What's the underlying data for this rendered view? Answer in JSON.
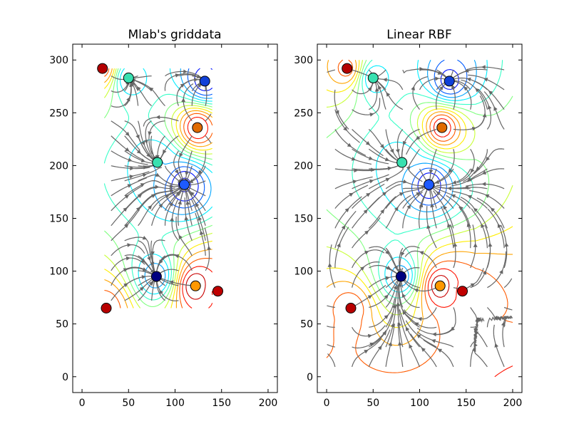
{
  "chart_data": [
    {
      "type": "scatter",
      "title": "Mlab's griddata",
      "xlabel": "",
      "ylabel": "",
      "xlim": [
        -10,
        210
      ],
      "ylim": [
        -15,
        315
      ],
      "xticks": [
        0,
        50,
        100,
        150,
        200
      ],
      "yticks": [
        0,
        50,
        100,
        150,
        200,
        250,
        300
      ],
      "grid": false,
      "contour_colormap": "jet",
      "streamline_color": "#666666",
      "interpolation_region": {
        "x": [
          24,
          140
        ],
        "y": [
          65,
          292
        ]
      },
      "points": [
        {
          "x": 22,
          "y": 292,
          "color": "#b40000"
        },
        {
          "x": 50,
          "y": 283,
          "color": "#38e0b0"
        },
        {
          "x": 132,
          "y": 280,
          "color": "#1040d8"
        },
        {
          "x": 124,
          "y": 236,
          "color": "#e06a00"
        },
        {
          "x": 81,
          "y": 203,
          "color": "#38e0b0"
        },
        {
          "x": 110,
          "y": 182,
          "color": "#1e5aff"
        },
        {
          "x": 80,
          "y": 95,
          "color": "#000080"
        },
        {
          "x": 122,
          "y": 86,
          "color": "#ff9800"
        },
        {
          "x": 146,
          "y": 81,
          "color": "#c00000"
        },
        {
          "x": 26,
          "y": 65,
          "color": "#b80000"
        }
      ]
    },
    {
      "type": "scatter",
      "title": "Linear RBF",
      "xlabel": "",
      "ylabel": "",
      "xlim": [
        -10,
        210
      ],
      "ylim": [
        -15,
        315
      ],
      "xticks": [
        0,
        50,
        100,
        150,
        200
      ],
      "yticks": [
        0,
        50,
        100,
        150,
        200,
        250,
        300
      ],
      "grid": false,
      "contour_colormap": "jet",
      "streamline_color": "#666666",
      "interpolation_region": {
        "x": [
          0,
          200
        ],
        "y": [
          0,
          300
        ]
      },
      "points": [
        {
          "x": 22,
          "y": 292,
          "color": "#b40000"
        },
        {
          "x": 50,
          "y": 283,
          "color": "#38e0b0"
        },
        {
          "x": 132,
          "y": 280,
          "color": "#1040d8"
        },
        {
          "x": 124,
          "y": 236,
          "color": "#e06a00"
        },
        {
          "x": 81,
          "y": 203,
          "color": "#38e0b0"
        },
        {
          "x": 110,
          "y": 182,
          "color": "#1e5aff"
        },
        {
          "x": 80,
          "y": 95,
          "color": "#000080"
        },
        {
          "x": 122,
          "y": 86,
          "color": "#ff9800"
        },
        {
          "x": 146,
          "y": 81,
          "color": "#c00000"
        },
        {
          "x": 26,
          "y": 65,
          "color": "#b80000"
        }
      ]
    }
  ]
}
